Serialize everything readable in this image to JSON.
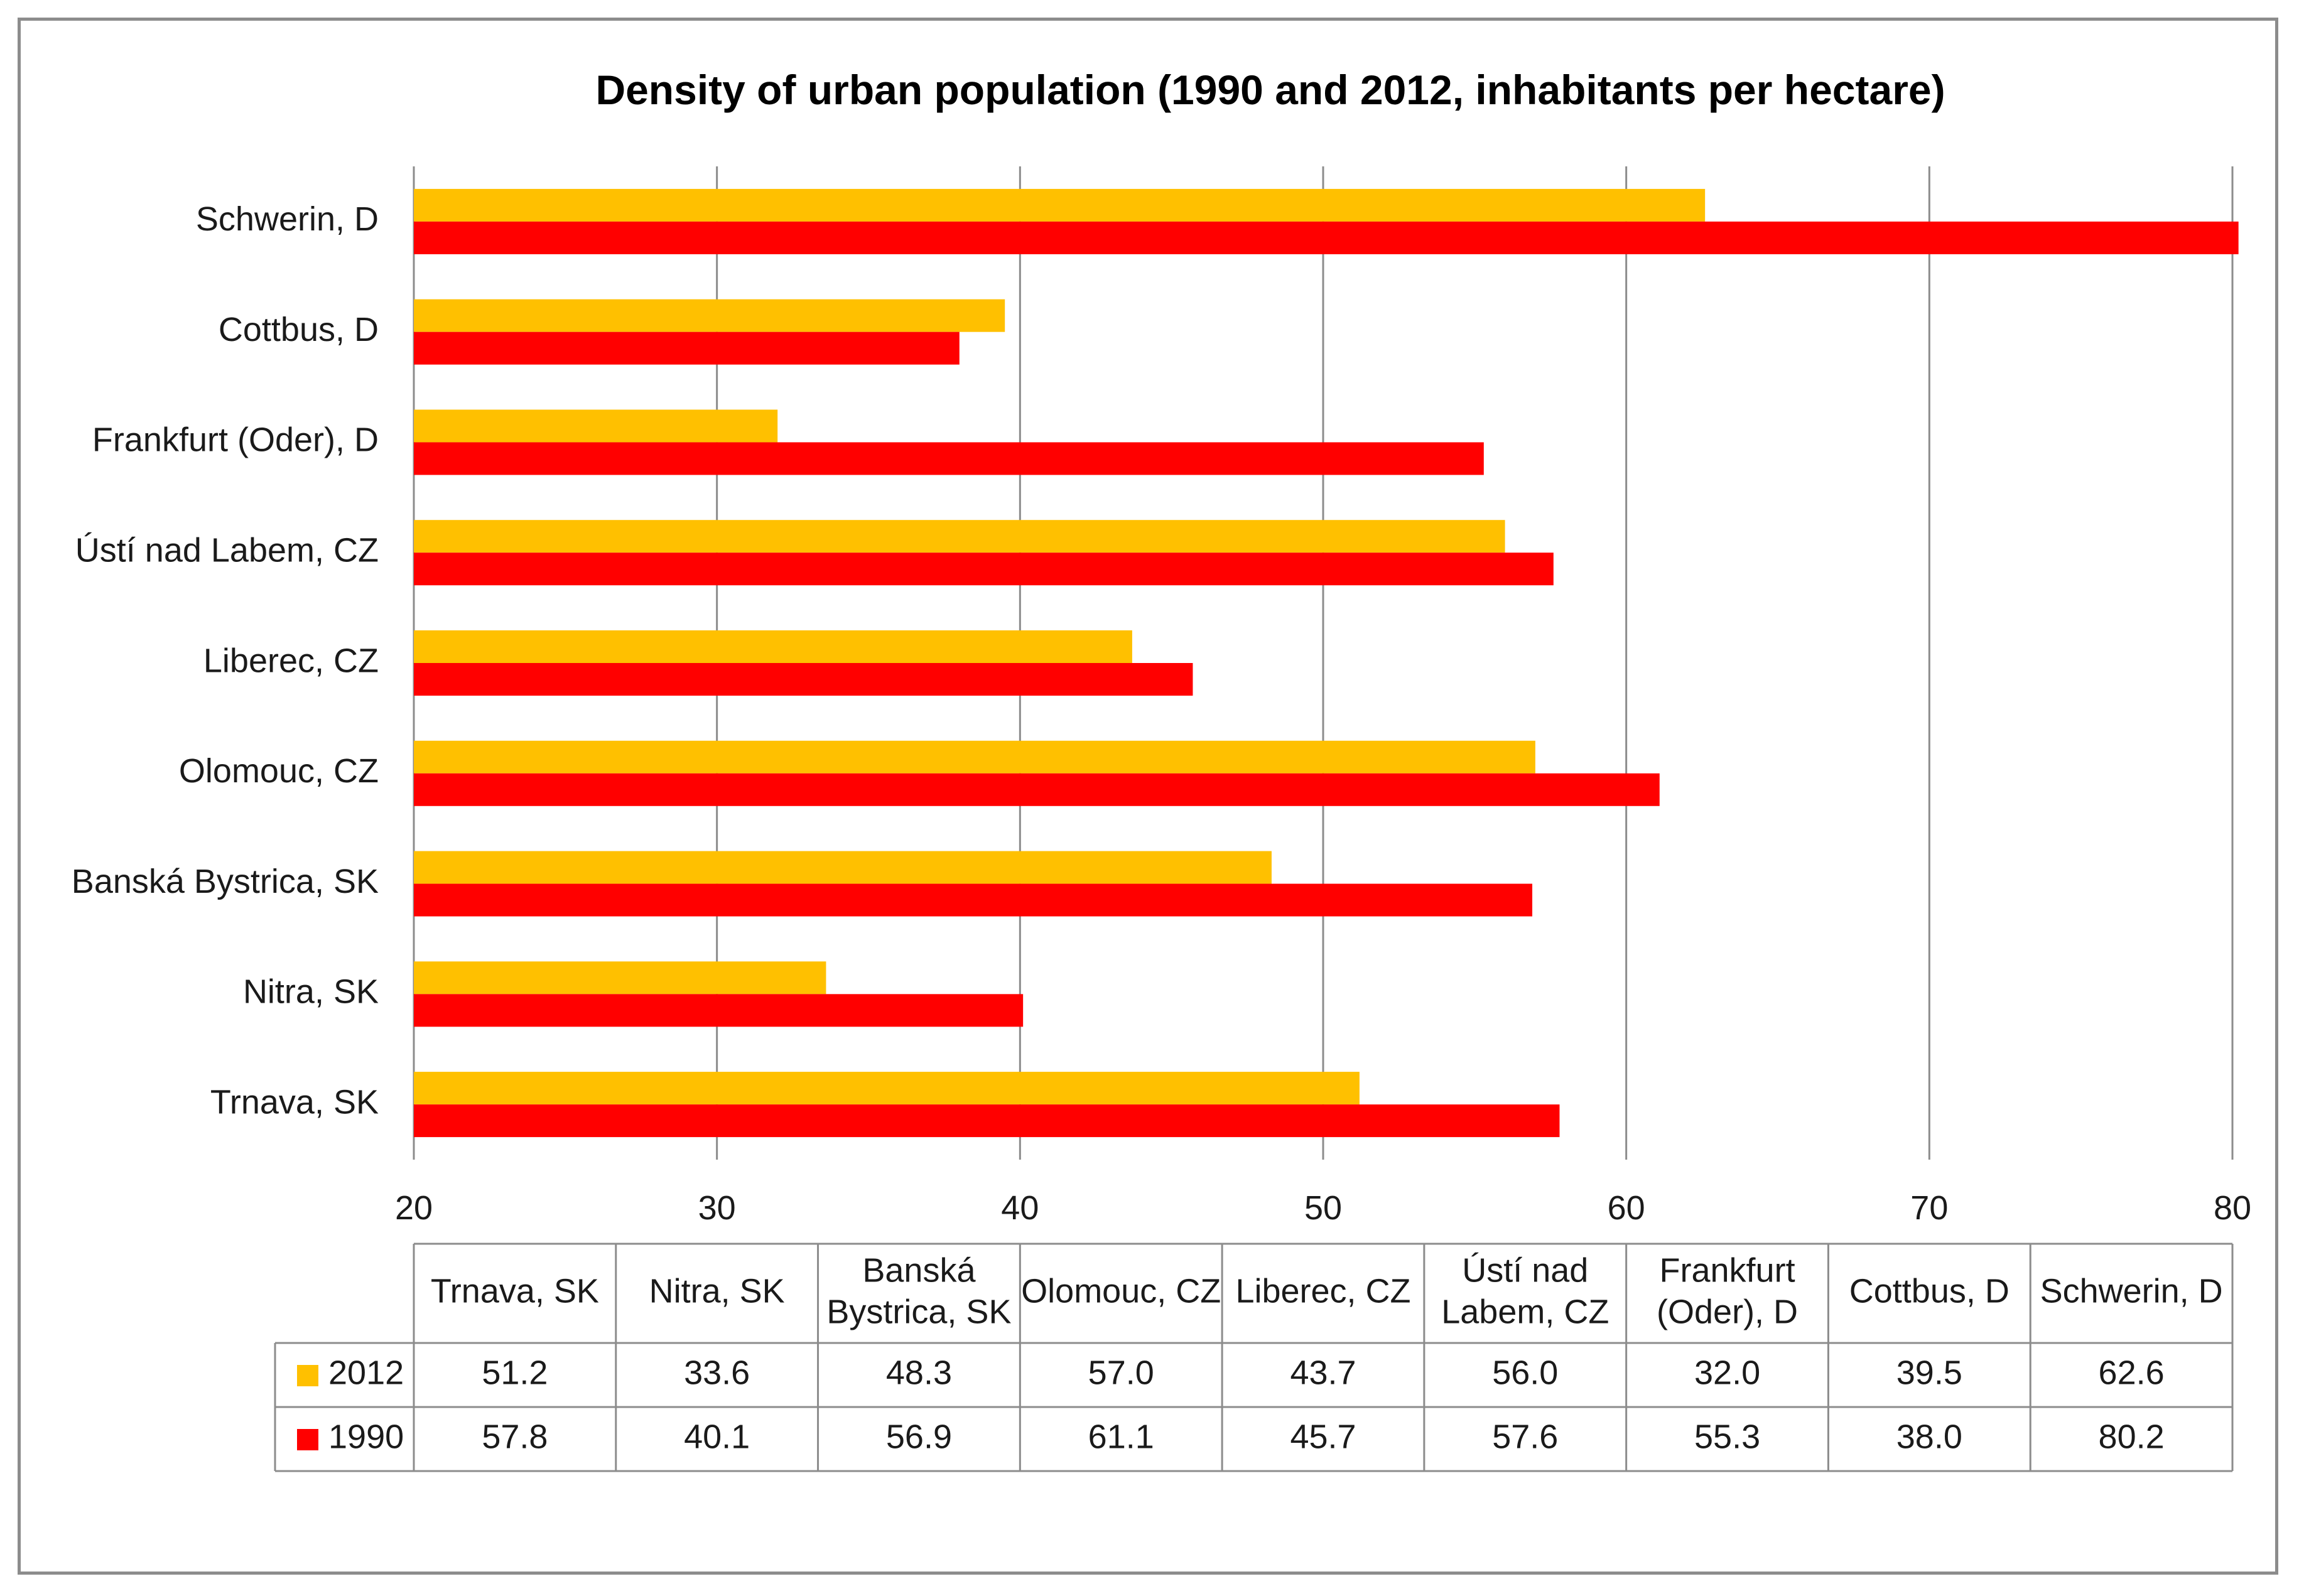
{
  "chart_data": {
    "type": "bar",
    "orientation": "horizontal",
    "title": "Density of urban population (1990 and 2012, inhabitants per hectare)",
    "xlabel": "",
    "ylabel": "",
    "xlim": [
      20,
      80
    ],
    "xticks": [
      20,
      30,
      40,
      50,
      60,
      70,
      80
    ],
    "grid": true,
    "legend": "data-table",
    "categories": [
      "Trnava, SK",
      "Nitra, SK",
      "Banská Bystrica, SK",
      "Olomouc, CZ",
      "Liberec, CZ",
      "Ústí nad Labem, CZ",
      "Frankfurt (Oder), D",
      "Cottbus, D",
      "Schwerin, D"
    ],
    "table_headers": [
      [
        "Trnava, SK"
      ],
      [
        "Nitra, SK"
      ],
      [
        "Banská",
        "Bystrica, SK"
      ],
      [
        "Olomouc, CZ"
      ],
      [
        "Liberec, CZ"
      ],
      [
        "Ústí nad",
        "Labem, CZ"
      ],
      [
        "Frankfurt",
        "(Oder), D"
      ],
      [
        "Cottbus, D"
      ],
      [
        "Schwerin, D"
      ]
    ],
    "series": [
      {
        "name": "2012",
        "color": "#FFC000",
        "values": [
          51.2,
          33.6,
          48.3,
          57.0,
          43.7,
          56.0,
          32.0,
          39.5,
          62.6
        ],
        "labels": [
          "51.2",
          "33.6",
          "48.3",
          "57.0",
          "43.7",
          "56.0",
          "32.0",
          "39.5",
          "62.6"
        ]
      },
      {
        "name": "1990",
        "color": "#FF0000",
        "values": [
          57.8,
          40.1,
          56.9,
          61.1,
          45.7,
          57.6,
          55.3,
          38.0,
          80.2
        ],
        "labels": [
          "57.8",
          "40.1",
          "56.9",
          "61.1",
          "45.7",
          "57.6",
          "55.3",
          "38.0",
          "80.2"
        ]
      }
    ]
  }
}
